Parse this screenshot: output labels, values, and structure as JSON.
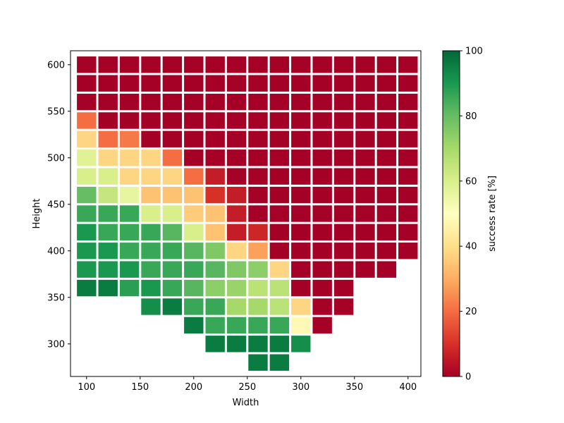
{
  "chart_data": {
    "type": "heatmap",
    "title": "",
    "xlabel": "Width",
    "ylabel": "Height",
    "colorbar_label": "success rate [%]",
    "colormap": "RdYlGn",
    "colorbar_range": [
      0,
      100
    ],
    "colorbar_ticks": [
      "0",
      "20",
      "40",
      "60",
      "80",
      "100"
    ],
    "xlim": [
      85,
      412
    ],
    "ylim": [
      265,
      615
    ],
    "x_ticks": [
      "100",
      "150",
      "200",
      "250",
      "300",
      "350",
      "400"
    ],
    "y_ticks": [
      "300",
      "350",
      "400",
      "450",
      "500",
      "550",
      "600"
    ],
    "x": [
      100,
      120,
      140,
      160,
      180,
      200,
      220,
      240,
      260,
      280,
      300,
      320,
      340,
      360,
      380,
      400
    ],
    "y": [
      600,
      580,
      560,
      540,
      520,
      500,
      480,
      460,
      440,
      420,
      400,
      380,
      360,
      340,
      320,
      300,
      280
    ],
    "values": [
      [
        0,
        0,
        0,
        0,
        0,
        0,
        0,
        0,
        0,
        0,
        0,
        0,
        0,
        0,
        0,
        0
      ],
      [
        0,
        0,
        0,
        0,
        0,
        0,
        0,
        0,
        0,
        0,
        0,
        0,
        0,
        0,
        0,
        0
      ],
      [
        0,
        0,
        0,
        0,
        0,
        0,
        0,
        0,
        0,
        0,
        0,
        0,
        0,
        0,
        0,
        0
      ],
      [
        20,
        0,
        0,
        0,
        0,
        0,
        0,
        0,
        0,
        0,
        0,
        0,
        0,
        0,
        0,
        0
      ],
      [
        38,
        20,
        22,
        0,
        0,
        0,
        0,
        0,
        0,
        0,
        0,
        0,
        0,
        0,
        0,
        0
      ],
      [
        58,
        38,
        38,
        38,
        20,
        0,
        0,
        0,
        0,
        0,
        0,
        0,
        0,
        0,
        0,
        0
      ],
      [
        60,
        60,
        38,
        38,
        38,
        20,
        6,
        0,
        0,
        0,
        0,
        0,
        0,
        0,
        0,
        0
      ],
      [
        80,
        64,
        56,
        34,
        34,
        34,
        10,
        6,
        0,
        0,
        0,
        0,
        0,
        0,
        0,
        0
      ],
      [
        86,
        86,
        86,
        60,
        60,
        36,
        34,
        6,
        0,
        0,
        0,
        0,
        0,
        0,
        0,
        0
      ],
      [
        90,
        86,
        86,
        86,
        82,
        60,
        34,
        6,
        8,
        0,
        0,
        0,
        0,
        0,
        0,
        0
      ],
      [
        90,
        90,
        86,
        86,
        86,
        82,
        76,
        38,
        28,
        0,
        0,
        0,
        0,
        0,
        0,
        0
      ],
      [
        90,
        90,
        90,
        86,
        86,
        86,
        82,
        76,
        74,
        38,
        0,
        0,
        0,
        0,
        0,
        null
      ],
      [
        96,
        96,
        88,
        90,
        86,
        82,
        74,
        72,
        66,
        66,
        0,
        0,
        0,
        null,
        null,
        null
      ],
      [
        null,
        null,
        null,
        92,
        96,
        86,
        86,
        70,
        70,
        66,
        38,
        0,
        0,
        null,
        null,
        null
      ],
      [
        null,
        null,
        null,
        null,
        null,
        96,
        86,
        86,
        86,
        86,
        48,
        0,
        null,
        null,
        null,
        null
      ],
      [
        null,
        null,
        null,
        null,
        null,
        null,
        96,
        96,
        96,
        96,
        92,
        null,
        null,
        null,
        null,
        null
      ],
      [
        null,
        null,
        null,
        null,
        null,
        null,
        null,
        null,
        96,
        96,
        null,
        null,
        null,
        null,
        null,
        null
      ]
    ]
  }
}
